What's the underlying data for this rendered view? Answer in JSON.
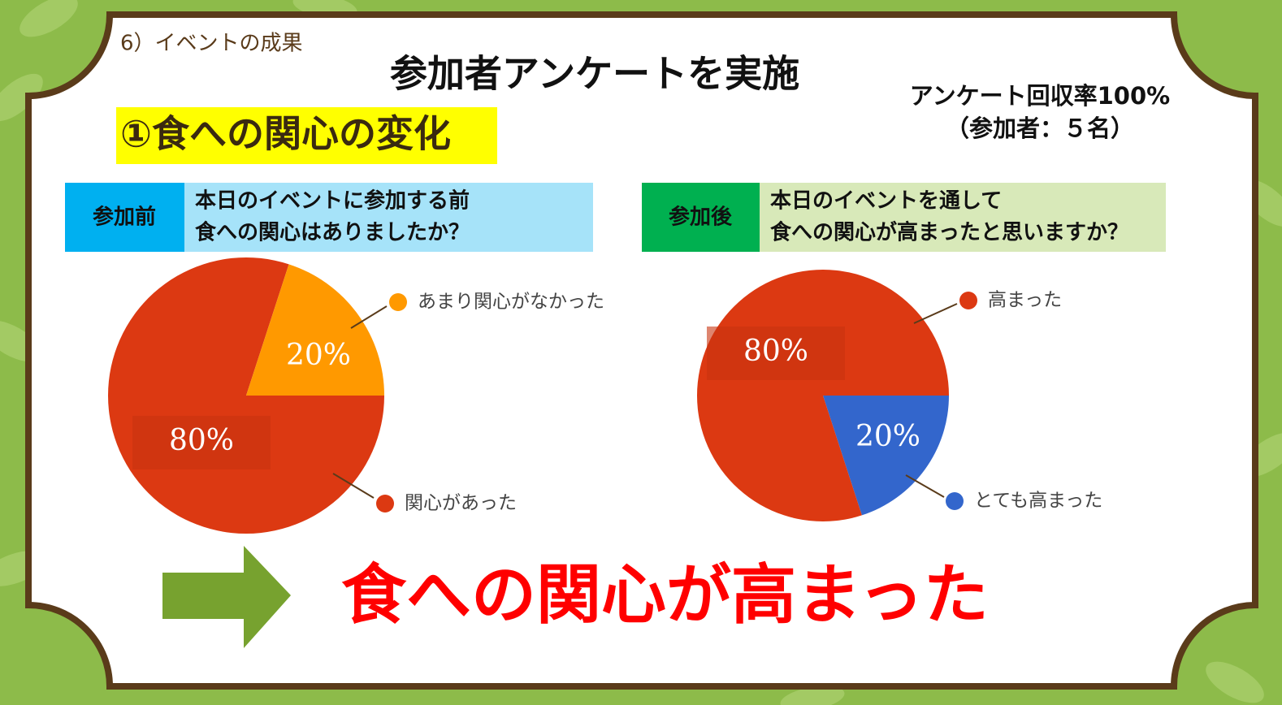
{
  "header": {
    "section": "6）イベントの成果",
    "title": "参加者アンケートを実施",
    "response_rate": "アンケート回収率100%",
    "participants": "（参加者：５名）",
    "topic": "①食への関心の変化"
  },
  "questions": [
    {
      "tag": "参加前",
      "lines": [
        "本日のイベントに参加する前",
        "食への関心はありましたか？"
      ]
    },
    {
      "tag": "参加後",
      "lines": [
        "本日のイベントを通して",
        "食への関心が高まったと思いますか？"
      ]
    }
  ],
  "chart_data": [
    {
      "type": "pie",
      "categories": [
        "関心があった",
        "あまり関心がなかった"
      ],
      "values": [
        80,
        20
      ],
      "value_labels": [
        "80%",
        "20%"
      ],
      "colors": [
        "#dc3912",
        "#ff9900"
      ]
    },
    {
      "type": "pie",
      "categories": [
        "とても高まった",
        "高まった"
      ],
      "values": [
        20,
        80
      ],
      "value_labels": [
        "20%",
        "80%"
      ],
      "colors": [
        "#3366cc",
        "#dc3912"
      ]
    }
  ],
  "conclusion": "食への関心が高まった"
}
